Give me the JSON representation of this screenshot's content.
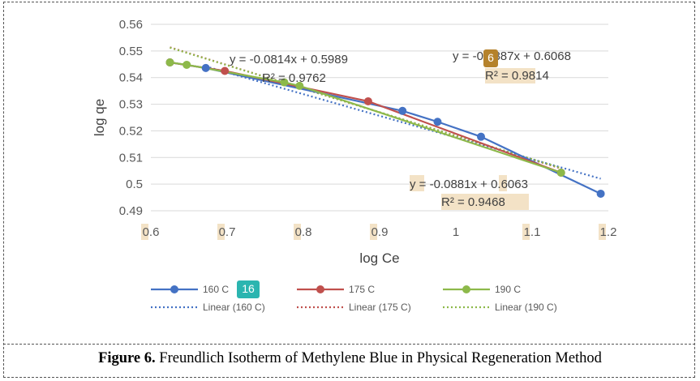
{
  "chart_data": {
    "type": "scatter",
    "title": "",
    "xlabel": "log Ce",
    "ylabel": "log qe",
    "xlim": [
      0.6,
      1.2
    ],
    "ylim": [
      0.49,
      0.56
    ],
    "x_ticks": [
      "0.6",
      "0.7",
      "0.8",
      "0.9",
      "1",
      "1.1",
      "1.2"
    ],
    "y_ticks": [
      "0.49",
      "0.5",
      "0.51",
      "0.52",
      "0.53",
      "0.54",
      "0.55",
      "0.56"
    ],
    "grid": "horizontal",
    "legend": "bottom",
    "series": [
      {
        "name": "160 C",
        "color": "#4472C4",
        "points": [
          [
            0.625,
            0.5457
          ],
          [
            0.672,
            0.5436
          ],
          [
            0.93,
            0.5275
          ],
          [
            0.976,
            0.5234
          ],
          [
            1.033,
            0.5178
          ],
          [
            1.19,
            0.4964
          ]
        ]
      },
      {
        "name": "175 C",
        "color": "#C0504D",
        "points": [
          [
            0.625,
            0.5457
          ],
          [
            0.697,
            0.5425
          ],
          [
            0.885,
            0.5311
          ],
          [
            1.138,
            0.5043
          ]
        ]
      },
      {
        "name": "190 C",
        "color": "#8DB94A",
        "points": [
          [
            0.625,
            0.5457
          ],
          [
            0.647,
            0.5448
          ],
          [
            0.775,
            0.5382
          ],
          [
            0.795,
            0.5369
          ],
          [
            1.138,
            0.5043
          ]
        ]
      }
    ],
    "trendlines": [
      {
        "name": "Linear (160 C)",
        "color": "#4472C4",
        "slope": -0.0814,
        "intercept": 0.5989,
        "x_range": [
          0.672,
          1.19
        ]
      },
      {
        "name": "Linear (175 C)",
        "color": "#C0504D",
        "slope": -0.0887,
        "intercept": 0.6068,
        "x_range": [
          0.625,
          1.138
        ]
      },
      {
        "name": "Linear (190 C)",
        "color": "#8DB94A",
        "slope": -0.0881,
        "intercept": 0.6063,
        "x_range": [
          0.625,
          1.138
        ]
      }
    ],
    "annotations": {
      "eq1": "y = -0.0814x + 0.5989",
      "r1": "R² = 0.9762",
      "eq2": "y = -0.0887x + 0.6068",
      "r2": "R² = 0.9814",
      "eq3": "y = -0.0881x + 0.6063",
      "r3": "R² = 0.9468"
    }
  },
  "badges": {
    "b1": "6",
    "b2": "16"
  },
  "caption": {
    "bold": "Figure 6.",
    "text": " Freundlich Isotherm of Methylene Blue in Physical Regeneration Method"
  }
}
